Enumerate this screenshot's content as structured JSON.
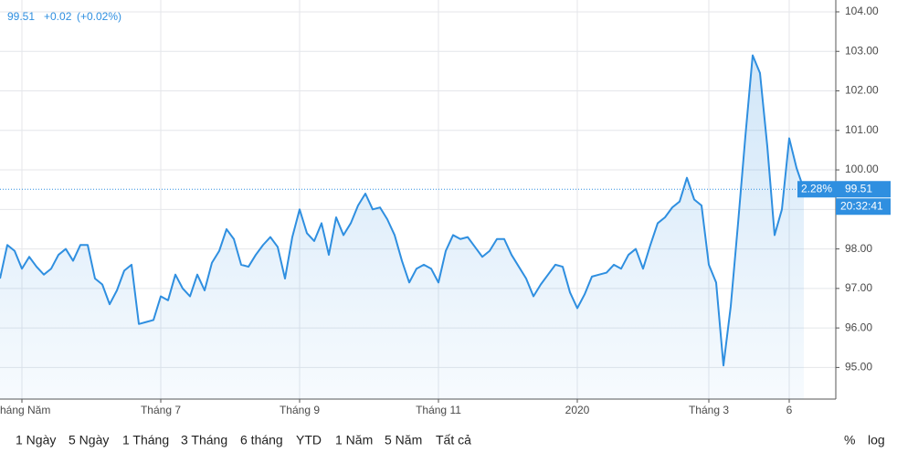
{
  "header": {
    "price": "99.51",
    "change": "+0.02",
    "change_pct": "(+0.02%)"
  },
  "chart_data": {
    "type": "line",
    "categories": [
      null,
      null,
      null,
      "Tháng Năm",
      null,
      null,
      null,
      null,
      null,
      null,
      null,
      null,
      null,
      null,
      null,
      null,
      null,
      null,
      null,
      null,
      null,
      null,
      "Tháng 7",
      null,
      null,
      null,
      null,
      null,
      null,
      null,
      null,
      null,
      null,
      null,
      null,
      null,
      null,
      null,
      null,
      null,
      null,
      "Tháng 9",
      null,
      null,
      null,
      null,
      null,
      null,
      null,
      null,
      null,
      null,
      null,
      null,
      null,
      null,
      null,
      null,
      null,
      null,
      "Tháng 11",
      null,
      null,
      null,
      null,
      null,
      null,
      null,
      null,
      null,
      null,
      null,
      null,
      null,
      null,
      null,
      null,
      null,
      null,
      "2020",
      null,
      null,
      null,
      null,
      null,
      null,
      null,
      null,
      null,
      null,
      null,
      null,
      null,
      null,
      null,
      null,
      null,
      "Tháng 3",
      null,
      null,
      null,
      null,
      null,
      null,
      null,
      null,
      null,
      null,
      "6",
      null,
      null
    ],
    "series": [
      {
        "color": "#2f8fe0",
        "values": [
          97.25,
          98.1,
          97.95,
          97.5,
          97.8,
          97.55,
          97.35,
          97.5,
          97.85,
          98.0,
          97.7,
          98.1,
          98.1,
          97.25,
          97.1,
          96.6,
          96.95,
          97.45,
          97.6,
          96.1,
          96.15,
          96.2,
          96.8,
          96.7,
          97.35,
          97.0,
          96.8,
          97.35,
          96.95,
          97.65,
          97.95,
          98.5,
          98.25,
          97.6,
          97.55,
          97.85,
          98.1,
          98.3,
          98.05,
          97.25,
          98.3,
          99.0,
          98.4,
          98.2,
          98.65,
          97.85,
          98.8,
          98.35,
          98.65,
          99.1,
          99.4,
          99.0,
          99.05,
          98.75,
          98.35,
          97.7,
          97.15,
          97.5,
          97.6,
          97.5,
          97.15,
          97.95,
          98.35,
          98.25,
          98.3,
          98.05,
          97.8,
          97.95,
          98.25,
          98.25,
          97.85,
          97.55,
          97.25,
          96.8,
          97.1,
          97.35,
          97.6,
          97.55,
          96.9,
          96.5,
          96.85,
          97.3,
          97.35,
          97.4,
          97.6,
          97.5,
          97.85,
          98.0,
          97.5,
          98.1,
          98.65,
          98.8,
          99.05,
          99.2,
          99.8,
          99.25,
          99.1,
          97.6,
          97.15,
          95.05,
          96.55,
          98.65,
          100.85,
          102.9,
          102.45,
          100.6,
          98.35,
          99.0,
          100.8,
          100.05,
          99.51
        ]
      }
    ],
    "ylim": [
      94.2,
      104.3
    ],
    "yticks": [
      {
        "value": 95,
        "label": "95.00"
      },
      {
        "value": 96,
        "label": "96.00"
      },
      {
        "value": 97,
        "label": "97.00"
      },
      {
        "value": 98,
        "label": "98.00"
      },
      {
        "value": 99,
        "label": "99.00"
      },
      {
        "value": 100,
        "label": "100.00"
      },
      {
        "value": 101,
        "label": "101.00"
      },
      {
        "value": 102,
        "label": "102.00"
      },
      {
        "value": 103,
        "label": "103.00"
      },
      {
        "value": 104,
        "label": "104.00"
      }
    ],
    "grid": true,
    "last_price_label": "99.51",
    "change_pct_label": "2.28%",
    "time_label": "20:32:41"
  },
  "toolbar": {
    "buttons": [
      "1 Ngày",
      "5 Ngày",
      "1 Tháng",
      "3 Tháng",
      "6 tháng",
      "YTD",
      "1 Năm",
      "5 Năm",
      "Tất cả"
    ],
    "right": [
      "%",
      "log"
    ]
  }
}
